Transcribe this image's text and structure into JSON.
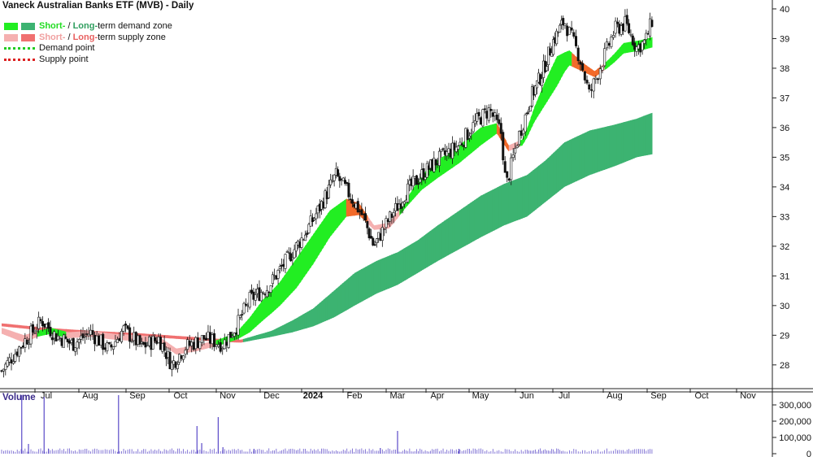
{
  "chart_data": {
    "type": "line",
    "title": "Vaneck Australian Banks ETF (MVB) - Daily",
    "legend": [
      {
        "short": "Short-",
        "sep": " / ",
        "long": "Long-",
        "rest": "term demand zone",
        "short_color": "#22ee22",
        "long_color": "#3cb371"
      },
      {
        "short": "Short-",
        "sep": " / ",
        "long": "Long-",
        "rest": "term supply zone",
        "short_color": "#f5b0b0",
        "long_color": "#f07070"
      },
      {
        "label": "Demand point",
        "color": "#22cc22"
      },
      {
        "label": "Supply point",
        "color": "#dd2222"
      }
    ],
    "x_labels": [
      "Jul",
      "Aug",
      "Sep",
      "Oct",
      "Nov",
      "Dec",
      "2024",
      "Feb",
      "Mar",
      "Apr",
      "May",
      "Jun",
      "Jul",
      "Aug",
      "Sep",
      "Oct",
      "Nov"
    ],
    "y_ticks": [
      28,
      29,
      30,
      31,
      32,
      33,
      34,
      35,
      36,
      37,
      38,
      39,
      40
    ],
    "ylim": [
      27.2,
      40.3
    ],
    "price_anchors": [
      {
        "m": 0.0,
        "v": 27.8
      },
      {
        "m": 0.4,
        "v": 28.6
      },
      {
        "m": 0.9,
        "v": 29.5
      },
      {
        "m": 1.2,
        "v": 29.0
      },
      {
        "m": 1.6,
        "v": 28.7
      },
      {
        "m": 2.0,
        "v": 29.1
      },
      {
        "m": 2.4,
        "v": 28.5
      },
      {
        "m": 2.7,
        "v": 29.2
      },
      {
        "m": 3.1,
        "v": 28.6
      },
      {
        "m": 3.5,
        "v": 28.9
      },
      {
        "m": 3.8,
        "v": 28.0
      },
      {
        "m": 4.1,
        "v": 28.6
      },
      {
        "m": 4.5,
        "v": 28.9
      },
      {
        "m": 4.9,
        "v": 28.7
      },
      {
        "m": 5.2,
        "v": 29.3
      },
      {
        "m": 5.5,
        "v": 30.2
      },
      {
        "m": 5.9,
        "v": 30.6
      },
      {
        "m": 6.4,
        "v": 31.6
      },
      {
        "m": 6.8,
        "v": 32.4
      },
      {
        "m": 7.2,
        "v": 33.4
      },
      {
        "m": 7.55,
        "v": 34.4
      },
      {
        "m": 7.9,
        "v": 33.7
      },
      {
        "m": 8.2,
        "v": 33.0
      },
      {
        "m": 8.45,
        "v": 32.0
      },
      {
        "m": 8.8,
        "v": 32.9
      },
      {
        "m": 9.2,
        "v": 33.8
      },
      {
        "m": 9.6,
        "v": 34.4
      },
      {
        "m": 10.0,
        "v": 34.9
      },
      {
        "m": 10.5,
        "v": 35.4
      },
      {
        "m": 10.9,
        "v": 36.2
      },
      {
        "m": 11.2,
        "v": 36.6
      },
      {
        "m": 11.45,
        "v": 35.8
      },
      {
        "m": 11.55,
        "v": 34.0
      },
      {
        "m": 11.8,
        "v": 35.6
      },
      {
        "m": 12.1,
        "v": 37.0
      },
      {
        "m": 12.4,
        "v": 37.8
      },
      {
        "m": 12.7,
        "v": 38.9
      },
      {
        "m": 13.0,
        "v": 39.6
      },
      {
        "m": 13.3,
        "v": 38.4
      },
      {
        "m": 13.5,
        "v": 37.1
      },
      {
        "m": 13.7,
        "v": 38.0
      },
      {
        "m": 14.0,
        "v": 39.3
      },
      {
        "m": 14.25,
        "v": 39.5
      },
      {
        "m": 14.5,
        "v": 38.7
      },
      {
        "m": 14.7,
        "v": 38.9
      },
      {
        "m": 14.85,
        "v": 39.6
      }
    ],
    "short_zone": [
      {
        "m": 0.0,
        "a": 29.05,
        "b": 29.25
      },
      {
        "m": 0.5,
        "a": 28.75,
        "b": 29.0
      },
      {
        "m": 0.8,
        "a": 28.95,
        "b": 29.15
      },
      {
        "m": 1.1,
        "a": 29.05,
        "b": 29.25
      },
      {
        "m": 1.5,
        "a": 28.9,
        "b": 29.1
      },
      {
        "m": 2.0,
        "a": 28.95,
        "b": 29.15
      },
      {
        "m": 2.5,
        "a": 28.85,
        "b": 29.05
      },
      {
        "m": 3.0,
        "a": 28.8,
        "b": 29.0
      },
      {
        "m": 3.5,
        "a": 28.75,
        "b": 28.95
      },
      {
        "m": 3.9,
        "a": 28.35,
        "b": 28.55
      },
      {
        "m": 4.3,
        "a": 28.45,
        "b": 28.65
      },
      {
        "m": 4.8,
        "a": 28.65,
        "b": 28.85
      },
      {
        "m": 5.2,
        "a": 28.85,
        "b": 29.1
      },
      {
        "m": 5.5,
        "a": 29.1,
        "b": 29.6
      },
      {
        "m": 5.8,
        "a": 29.5,
        "b": 30.2
      },
      {
        "m": 6.2,
        "a": 30.0,
        "b": 30.8
      },
      {
        "m": 6.6,
        "a": 30.6,
        "b": 31.6
      },
      {
        "m": 7.0,
        "a": 31.4,
        "b": 32.4
      },
      {
        "m": 7.4,
        "a": 32.3,
        "b": 33.2
      },
      {
        "m": 7.8,
        "a": 33.0,
        "b": 33.6
      },
      {
        "m": 8.1,
        "a": 33.05,
        "b": 33.45
      },
      {
        "m": 8.45,
        "a": 32.55,
        "b": 32.7
      },
      {
        "m": 8.8,
        "a": 32.6,
        "b": 32.8
      },
      {
        "m": 9.2,
        "a": 33.3,
        "b": 33.55
      },
      {
        "m": 9.6,
        "a": 33.9,
        "b": 34.4
      },
      {
        "m": 10.0,
        "a": 34.3,
        "b": 34.9
      },
      {
        "m": 10.5,
        "a": 34.8,
        "b": 35.4
      },
      {
        "m": 11.0,
        "a": 35.4,
        "b": 36.0
      },
      {
        "m": 11.35,
        "a": 35.8,
        "b": 36.15
      },
      {
        "m": 11.6,
        "a": 35.2,
        "b": 35.4
      },
      {
        "m": 11.9,
        "a": 35.4,
        "b": 35.6
      },
      {
        "m": 12.2,
        "a": 36.2,
        "b": 36.7
      },
      {
        "m": 12.5,
        "a": 36.8,
        "b": 37.6
      },
      {
        "m": 12.8,
        "a": 37.4,
        "b": 38.4
      },
      {
        "m": 13.1,
        "a": 38.1,
        "b": 38.6
      },
      {
        "m": 13.35,
        "a": 37.9,
        "b": 38.2
      },
      {
        "m": 13.6,
        "a": 37.7,
        "b": 37.9
      },
      {
        "m": 13.85,
        "a": 38.0,
        "b": 38.25
      },
      {
        "m": 14.2,
        "a": 38.5,
        "b": 38.85
      },
      {
        "m": 14.6,
        "a": 38.6,
        "b": 38.95
      },
      {
        "m": 14.85,
        "a": 38.7,
        "b": 39.05
      }
    ],
    "short_supply_segments": [
      [
        0.0,
        0.8
      ],
      [
        1.45,
        4.7
      ],
      [
        7.8,
        9.0
      ],
      [
        11.35,
        11.85
      ],
      [
        13.15,
        13.8
      ]
    ],
    "long_zone": [
      {
        "m": 0.0,
        "a": 29.3,
        "b": 29.4
      },
      {
        "m": 1.0,
        "a": 29.15,
        "b": 29.25
      },
      {
        "m": 2.0,
        "a": 29.05,
        "b": 29.15
      },
      {
        "m": 3.0,
        "a": 28.97,
        "b": 29.07
      },
      {
        "m": 4.0,
        "a": 28.87,
        "b": 28.97
      },
      {
        "m": 4.8,
        "a": 28.78,
        "b": 28.88
      },
      {
        "m": 5.3,
        "a": 28.75,
        "b": 28.85
      },
      {
        "m": 6.0,
        "a": 28.95,
        "b": 29.15
      },
      {
        "m": 6.5,
        "a": 29.1,
        "b": 29.5
      },
      {
        "m": 7.0,
        "a": 29.3,
        "b": 29.9
      },
      {
        "m": 7.5,
        "a": 29.6,
        "b": 30.5
      },
      {
        "m": 8.0,
        "a": 30.0,
        "b": 31.1
      },
      {
        "m": 8.5,
        "a": 30.4,
        "b": 31.5
      },
      {
        "m": 9.0,
        "a": 30.7,
        "b": 31.8
      },
      {
        "m": 9.5,
        "a": 31.1,
        "b": 32.2
      },
      {
        "m": 10.0,
        "a": 31.5,
        "b": 32.7
      },
      {
        "m": 10.5,
        "a": 31.9,
        "b": 33.2
      },
      {
        "m": 11.0,
        "a": 32.3,
        "b": 33.7
      },
      {
        "m": 11.5,
        "a": 32.7,
        "b": 34.1
      },
      {
        "m": 12.0,
        "a": 33.0,
        "b": 34.4
      },
      {
        "m": 12.5,
        "a": 33.5,
        "b": 34.9
      },
      {
        "m": 13.0,
        "a": 34.0,
        "b": 35.5
      },
      {
        "m": 13.5,
        "a": 34.4,
        "b": 35.9
      },
      {
        "m": 14.0,
        "a": 34.7,
        "b": 36.1
      },
      {
        "m": 14.5,
        "a": 35.0,
        "b": 36.3
      },
      {
        "m": 14.85,
        "a": 35.1,
        "b": 36.5
      }
    ],
    "long_supply_segments": [
      [
        0.0,
        5.3
      ]
    ],
    "volume": {
      "label": "Volume",
      "ticks": [
        0,
        100000,
        200000,
        300000
      ],
      "ylim": [
        0,
        360000
      ],
      "spikes": [
        {
          "m": 0.45,
          "v": 380000
        },
        {
          "m": 0.6,
          "v": 60000
        },
        {
          "m": 0.95,
          "v": 350000
        },
        {
          "m": 1.05,
          "v": 30000
        },
        {
          "m": 2.6,
          "v": 370000
        },
        {
          "m": 4.35,
          "v": 170000
        },
        {
          "m": 4.45,
          "v": 65000
        },
        {
          "m": 4.8,
          "v": 225000
        },
        {
          "m": 4.9,
          "v": 40000
        },
        {
          "m": 5.6,
          "v": 30000
        },
        {
          "m": 9.0,
          "v": 140000
        },
        {
          "m": 8.6,
          "v": 35000
        },
        {
          "m": 10.5,
          "v": 30000
        }
      ],
      "base": 22000
    }
  }
}
